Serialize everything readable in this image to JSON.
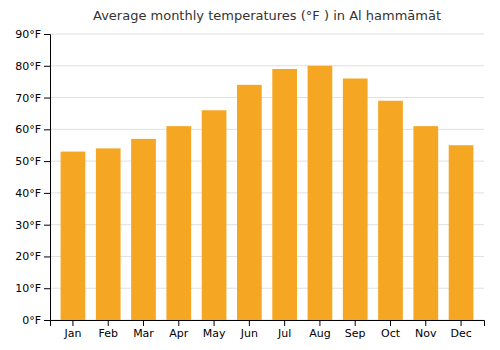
{
  "chart_data": {
    "type": "bar",
    "title": "Average monthly temperatures (°F ) in Al ḥammāmāt",
    "categories": [
      "Jan",
      "Feb",
      "Mar",
      "Apr",
      "May",
      "Jun",
      "Jul",
      "Aug",
      "Sep",
      "Oct",
      "Nov",
      "Dec"
    ],
    "values": [
      53,
      54,
      57,
      61,
      66,
      74,
      79,
      80,
      76,
      69,
      61,
      55
    ],
    "color": "#F5A623",
    "ylim": [
      0,
      90
    ],
    "yticks": [
      {
        "value": 0,
        "label": "0°F"
      },
      {
        "value": 10,
        "label": "10°F"
      },
      {
        "value": 20,
        "label": "20°F"
      },
      {
        "value": 30,
        "label": "30°F"
      },
      {
        "value": 40,
        "label": "40°F"
      },
      {
        "value": 50,
        "label": "50°F"
      },
      {
        "value": 60,
        "label": "60°F"
      },
      {
        "value": 70,
        "label": "70°F"
      },
      {
        "value": 80,
        "label": "80°F"
      },
      {
        "value": 90,
        "label": "90°F"
      }
    ],
    "grid": true
  }
}
